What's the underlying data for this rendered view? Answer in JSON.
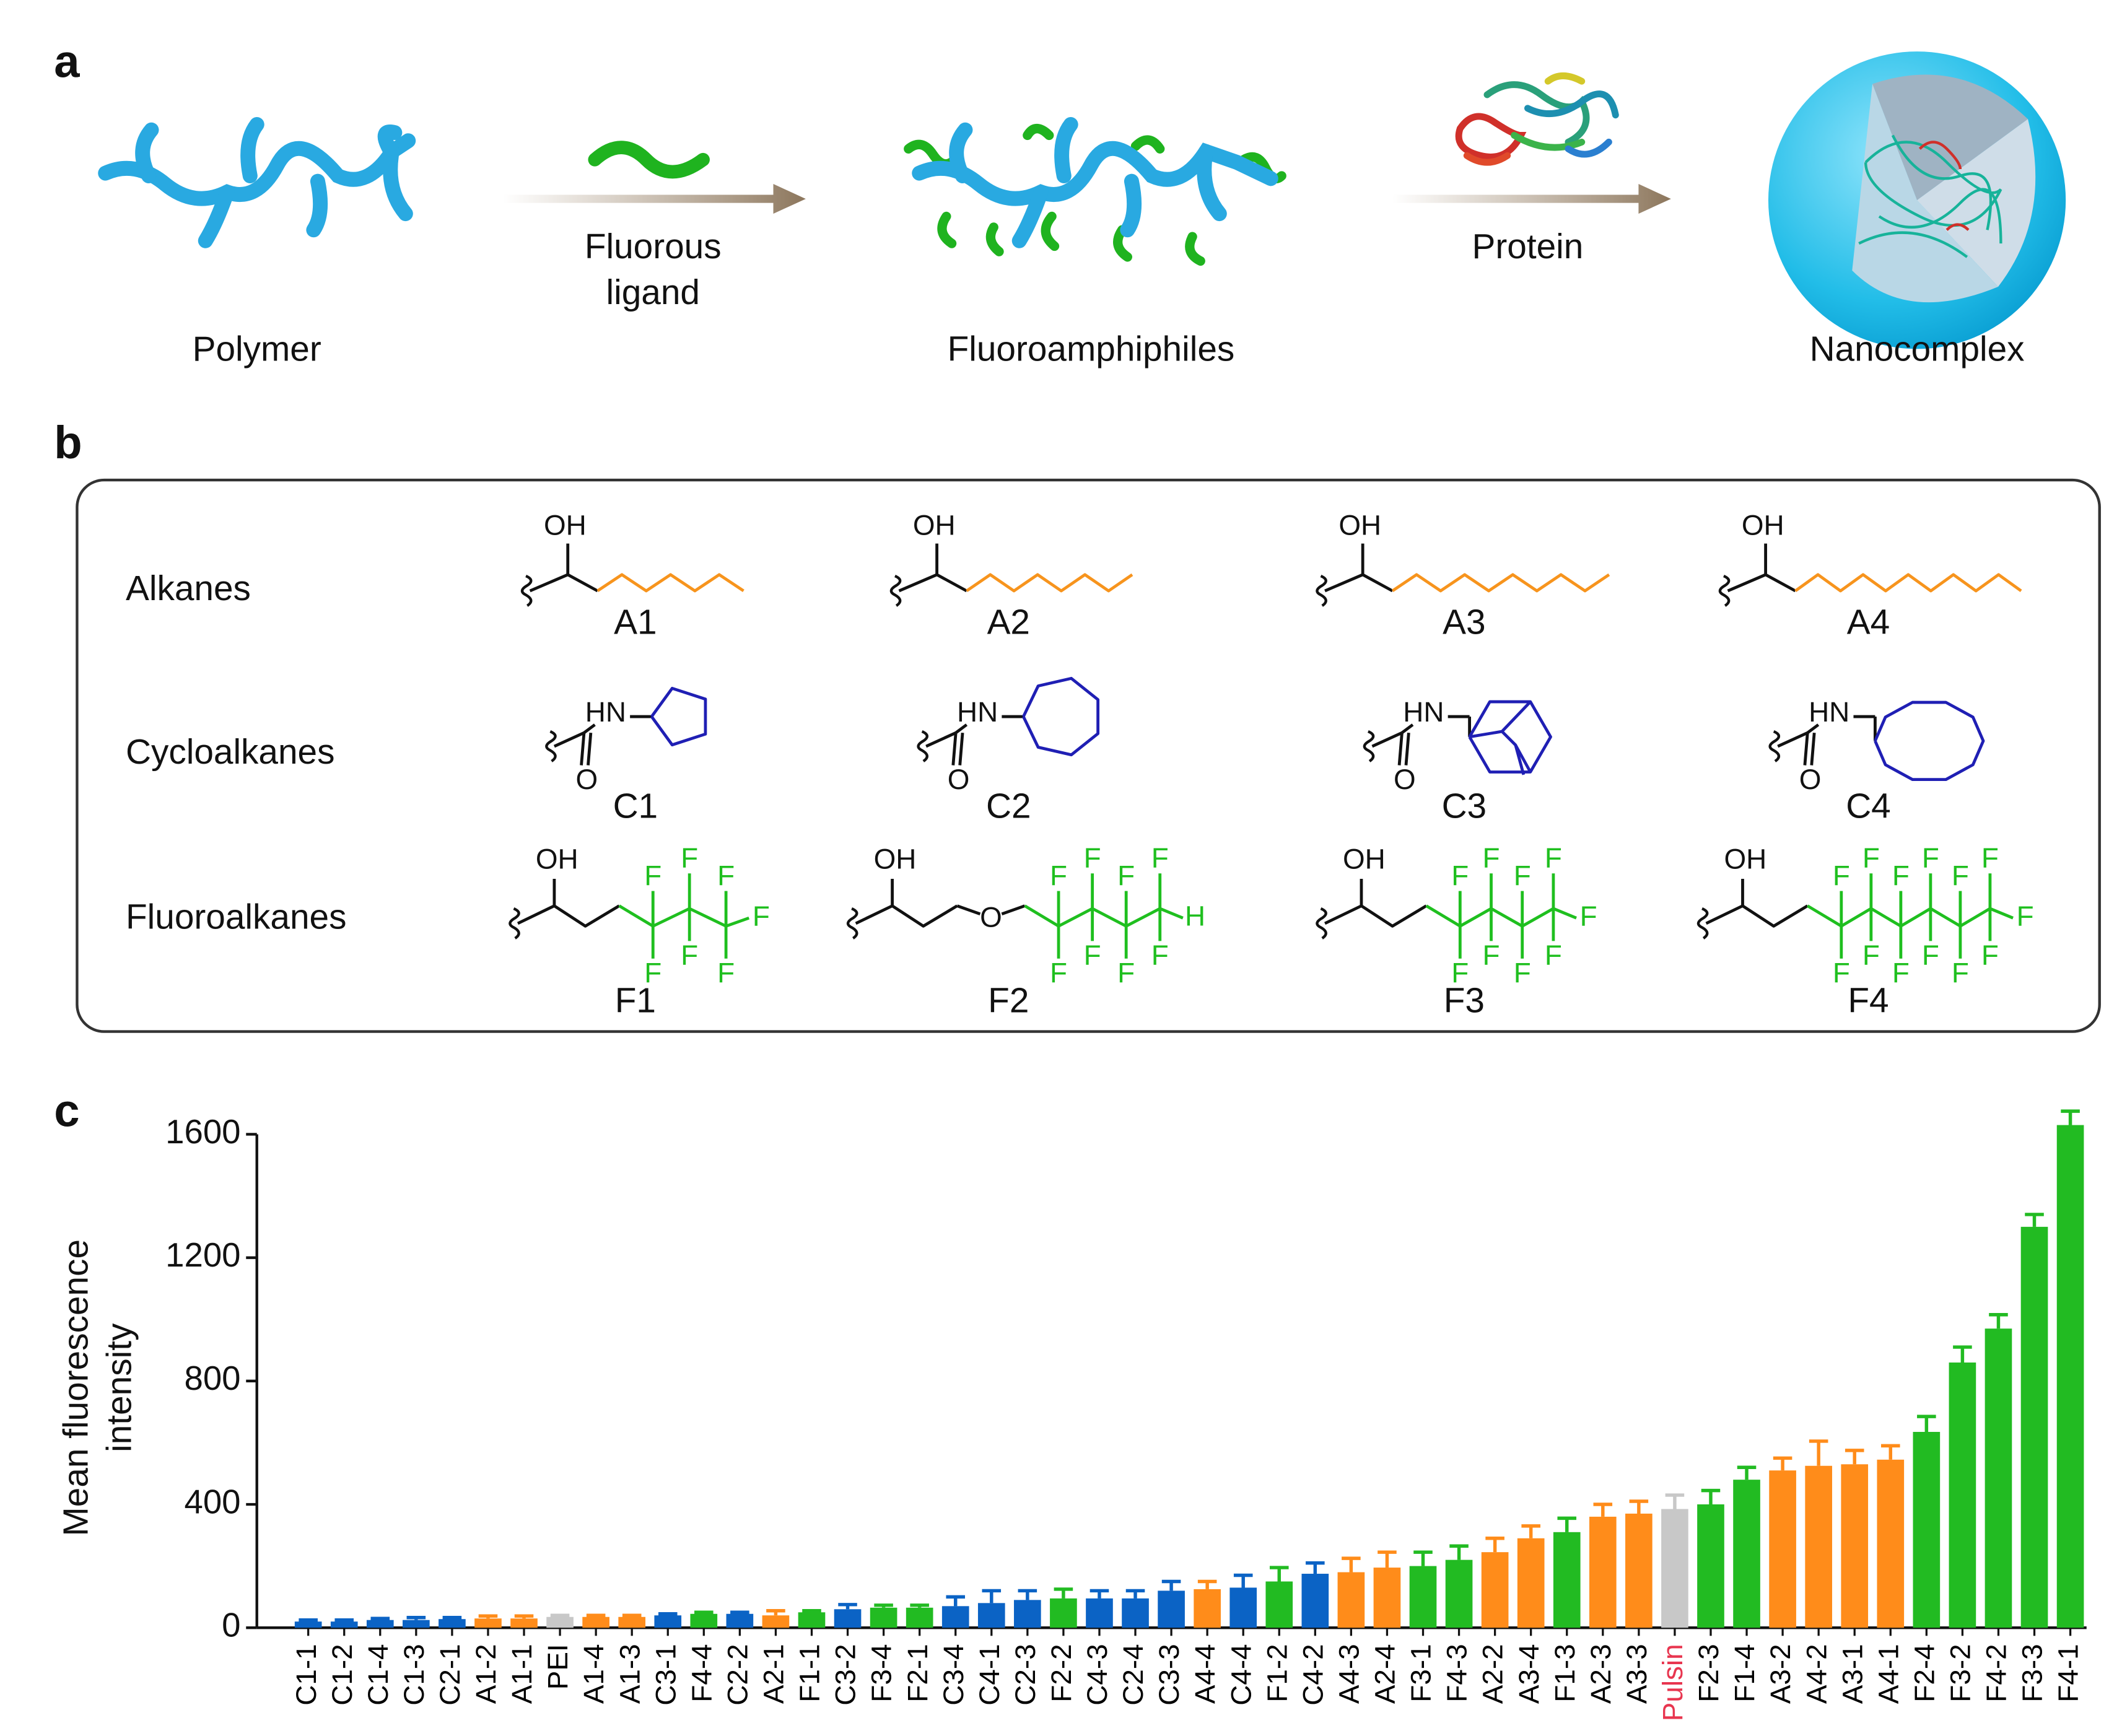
{
  "panel_a": {
    "label": "a",
    "polymer": "Polymer",
    "ligand": [
      "Fluorous",
      "ligand"
    ],
    "product": "Fluoroamphiphiles",
    "protein": "Protein",
    "complex": "Nanocomplex"
  },
  "panel_b": {
    "label": "b",
    "rows": [
      {
        "name": "Alkanes",
        "color": "#f7941d",
        "items": [
          {
            "name": "A1",
            "atoms": [
              "OH"
            ]
          },
          {
            "name": "A2",
            "atoms": [
              "OH"
            ]
          },
          {
            "name": "A3",
            "atoms": [
              "OH"
            ]
          },
          {
            "name": "A4",
            "atoms": [
              "OH"
            ]
          }
        ]
      },
      {
        "name": "Cycloalkanes",
        "color": "#1f1fb4",
        "items": [
          {
            "name": "C1",
            "atoms": [
              "HN",
              "O"
            ]
          },
          {
            "name": "C2",
            "atoms": [
              "HN",
              "O"
            ]
          },
          {
            "name": "C3",
            "atoms": [
              "HN",
              "O"
            ]
          },
          {
            "name": "C4",
            "atoms": [
              "HN",
              "O"
            ]
          }
        ]
      },
      {
        "name": "Fluoroalkanes",
        "color": "#1fbf1f",
        "items": [
          {
            "name": "F1",
            "atoms": [
              "OH",
              "F",
              "F",
              "F",
              "F",
              "F",
              "F",
              "F"
            ]
          },
          {
            "name": "F2",
            "atoms": [
              "OH",
              "O",
              "F",
              "F",
              "F",
              "F",
              "F",
              "F",
              "F",
              "F",
              "H"
            ]
          },
          {
            "name": "F3",
            "atoms": [
              "OH",
              "F",
              "F",
              "F",
              "F",
              "F",
              "F",
              "F",
              "F",
              "F"
            ]
          },
          {
            "name": "F4",
            "atoms": [
              "OH",
              "F",
              "F",
              "F",
              "F",
              "F",
              "F",
              "F",
              "F",
              "F",
              "F",
              "F",
              "F",
              "F"
            ]
          }
        ]
      }
    ]
  },
  "chart_data": {
    "type": "bar",
    "panel_label": "c",
    "ylabel_lines": [
      "Mean fluorescence",
      "intensity"
    ],
    "categories": [
      "C1-1",
      "C1-2",
      "C1-4",
      "C1-3",
      "C2-1",
      "A1-2",
      "A1-1",
      "PEI",
      "A1-4",
      "A1-3",
      "C3-1",
      "F4-4",
      "C2-2",
      "A2-1",
      "F1-1",
      "C3-2",
      "F3-4",
      "F2-1",
      "C3-4",
      "C4-1",
      "C2-3",
      "F2-2",
      "C4-3",
      "C2-4",
      "C3-3",
      "A4-4",
      "C4-4",
      "F1-2",
      "C4-2",
      "A4-3",
      "A2-4",
      "F3-1",
      "F4-3",
      "A2-2",
      "A3-4",
      "F1-3",
      "A2-3",
      "A3-3",
      "Pulsin",
      "F2-3",
      "F1-4",
      "A3-2",
      "A4-2",
      "A3-1",
      "A4-1",
      "F2-4",
      "F3-2",
      "F4-2",
      "F3-3",
      "F4-1"
    ],
    "values": [
      20,
      20,
      25,
      25,
      28,
      30,
      30,
      35,
      35,
      35,
      40,
      45,
      45,
      40,
      50,
      60,
      65,
      65,
      70,
      80,
      90,
      95,
      95,
      95,
      120,
      125,
      130,
      150,
      175,
      180,
      195,
      200,
      220,
      245,
      290,
      310,
      360,
      370,
      385,
      400,
      480,
      510,
      525,
      530,
      545,
      635,
      860,
      970,
      1300,
      1630
    ],
    "errors": [
      5,
      5,
      5,
      8,
      5,
      8,
      8,
      5,
      5,
      5,
      5,
      5,
      5,
      15,
      5,
      15,
      8,
      8,
      30,
      40,
      30,
      30,
      25,
      25,
      30,
      25,
      40,
      45,
      35,
      45,
      50,
      45,
      45,
      45,
      40,
      45,
      40,
      40,
      45,
      45,
      40,
      40,
      80,
      45,
      45,
      50,
      50,
      45,
      40,
      45
    ],
    "colors": [
      "#0b63c5",
      "#0b63c5",
      "#0b63c5",
      "#0b63c5",
      "#0b63c5",
      "#ff8c1a",
      "#ff8c1a",
      "#c8c8c8",
      "#ff8c1a",
      "#ff8c1a",
      "#0b63c5",
      "#22bb22",
      "#0b63c5",
      "#ff8c1a",
      "#22bb22",
      "#0b63c5",
      "#22bb22",
      "#22bb22",
      "#0b63c5",
      "#0b63c5",
      "#0b63c5",
      "#22bb22",
      "#0b63c5",
      "#0b63c5",
      "#0b63c5",
      "#ff8c1a",
      "#0b63c5",
      "#22bb22",
      "#0b63c5",
      "#ff8c1a",
      "#ff8c1a",
      "#22bb22",
      "#22bb22",
      "#ff8c1a",
      "#ff8c1a",
      "#22bb22",
      "#ff8c1a",
      "#ff8c1a",
      "#c8c8c8",
      "#22bb22",
      "#22bb22",
      "#ff8c1a",
      "#ff8c1a",
      "#ff8c1a",
      "#ff8c1a",
      "#22bb22",
      "#22bb22",
      "#22bb22",
      "#22bb22",
      "#22bb22"
    ],
    "label_colors": [
      "#000000",
      "#000000",
      "#000000",
      "#000000",
      "#000000",
      "#000000",
      "#000000",
      "#000000",
      "#000000",
      "#000000",
      "#000000",
      "#000000",
      "#000000",
      "#000000",
      "#000000",
      "#000000",
      "#000000",
      "#000000",
      "#000000",
      "#000000",
      "#000000",
      "#000000",
      "#000000",
      "#000000",
      "#000000",
      "#000000",
      "#000000",
      "#000000",
      "#000000",
      "#000000",
      "#000000",
      "#000000",
      "#000000",
      "#000000",
      "#000000",
      "#000000",
      "#000000",
      "#000000",
      "#e8354f",
      "#000000",
      "#000000",
      "#000000",
      "#000000",
      "#000000",
      "#000000",
      "#000000",
      "#000000",
      "#000000",
      "#000000",
      "#000000"
    ],
    "ylim": [
      0,
      1600
    ],
    "yticks": [
      0,
      400,
      800,
      1200,
      1600
    ],
    "grid": false
  }
}
